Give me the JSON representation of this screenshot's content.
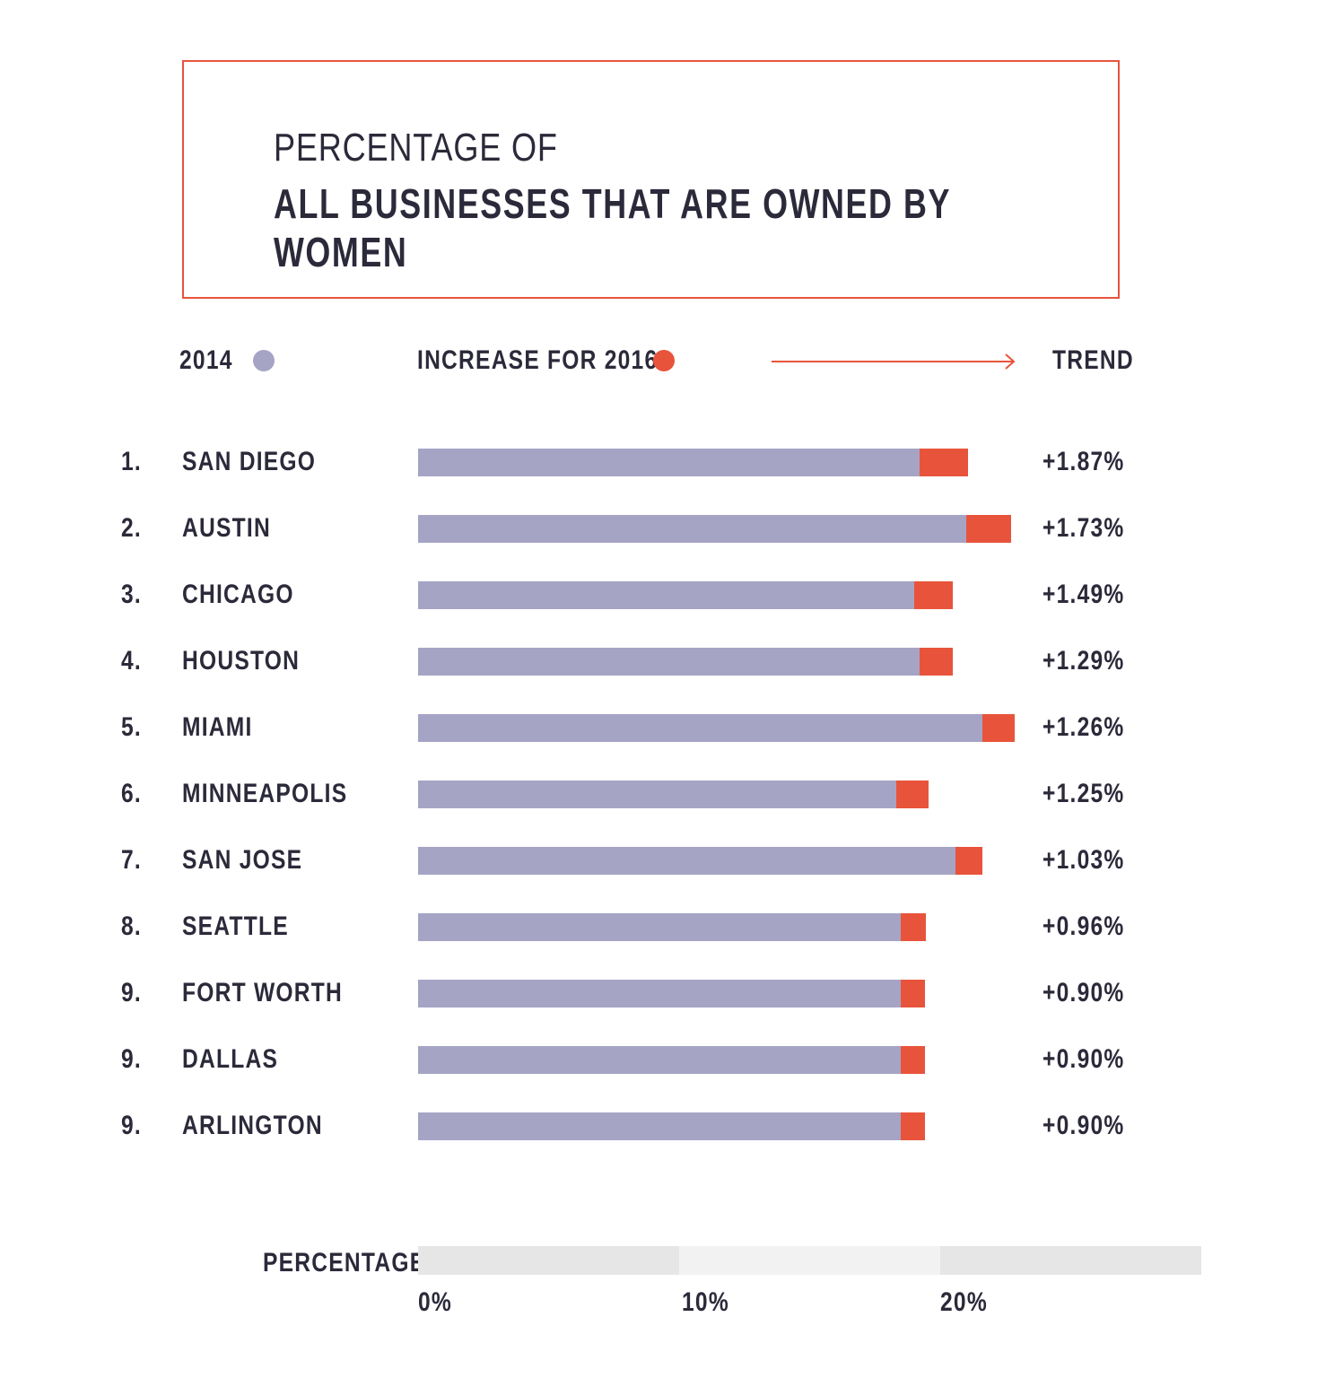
{
  "title_line1": "PERCENTAGE OF",
  "title_line2": "ALL BUSINESSES THAT ARE OWNED BY WOMEN",
  "legend": {
    "base_label": "2014",
    "increase_label": "INCREASE FOR 2016",
    "trend_label": "TREND"
  },
  "colors": {
    "base": "#a6a4c5",
    "increase": "#e8543b",
    "text": "#2b2a3a",
    "axis_light": "#e6e6e6",
    "axis_lighter": "#f3f2f3"
  },
  "axis": {
    "label": "PERCENTAGE",
    "ticks": [
      "0%",
      "10%",
      "20%"
    ]
  },
  "chart_data": {
    "type": "bar",
    "stacked": true,
    "orientation": "horizontal",
    "title": "PERCENTAGE OF ALL BUSINESSES THAT ARE OWNED BY WOMEN",
    "xlabel": "PERCENTAGE",
    "xlim": [
      0,
      30
    ],
    "xticks": [
      0,
      10,
      20
    ],
    "categories": [
      "SAN DIEGO",
      "AUSTIN",
      "CHICAGO",
      "HOUSTON",
      "MIAMI",
      "MINNEAPOLIS",
      "SAN JOSE",
      "SEATTLE",
      "FORT WORTH",
      "DALLAS",
      "ARLINGTON"
    ],
    "ranks": [
      "1.",
      "2.",
      "3.",
      "4.",
      "5.",
      "6.",
      "7.",
      "8.",
      "9.",
      "9.",
      "9."
    ],
    "series": [
      {
        "name": "2014",
        "values": [
          19.2,
          21.0,
          19.0,
          19.2,
          21.6,
          18.3,
          20.6,
          18.5,
          18.5,
          18.5,
          18.5
        ]
      },
      {
        "name": "INCREASE FOR 2016",
        "values": [
          1.87,
          1.73,
          1.49,
          1.29,
          1.26,
          1.25,
          1.03,
          0.96,
          0.9,
          0.9,
          0.9
        ]
      }
    ],
    "trend_labels": [
      "+1.87%",
      "+1.73%",
      "+1.49%",
      "+1.29%",
      "+1.26%",
      "+1.25%",
      "+1.03%",
      "+0.96%",
      "+0.90%",
      "+0.90%",
      "+0.90%"
    ]
  }
}
